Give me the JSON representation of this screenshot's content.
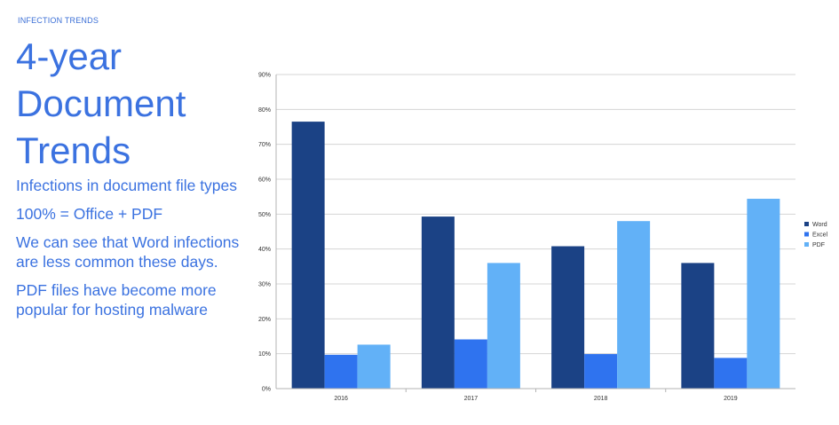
{
  "slide": {
    "kicker": "INFECTION TRENDS",
    "title": "4-year Document Trends",
    "bullets": [
      "Infections in document file types",
      "100% = Office + PDF",
      "We can see that Word infections are less common these days.",
      "PDF files have become more popular for hosting malware"
    ]
  },
  "chart_data": {
    "type": "bar",
    "categories": [
      "2016",
      "2017",
      "2018",
      "2019"
    ],
    "series": [
      {
        "name": "Word",
        "values": [
          76.5,
          49.3,
          40.8,
          36.0
        ],
        "color": "#1b4285"
      },
      {
        "name": "Excel",
        "values": [
          9.7,
          14.1,
          9.9,
          8.8
        ],
        "color": "#2f73ef"
      },
      {
        "name": "PDF",
        "values": [
          12.6,
          36.0,
          48.0,
          54.4
        ],
        "color": "#62b1f7"
      }
    ],
    "ylim": [
      0,
      90
    ],
    "yticks": [
      "0%",
      "10%",
      "20%",
      "30%",
      "40%",
      "50%",
      "60%",
      "70%",
      "80%",
      "90%"
    ],
    "grid": true,
    "legend": "right",
    "title": "",
    "xlabel": "",
    "ylabel": ""
  }
}
